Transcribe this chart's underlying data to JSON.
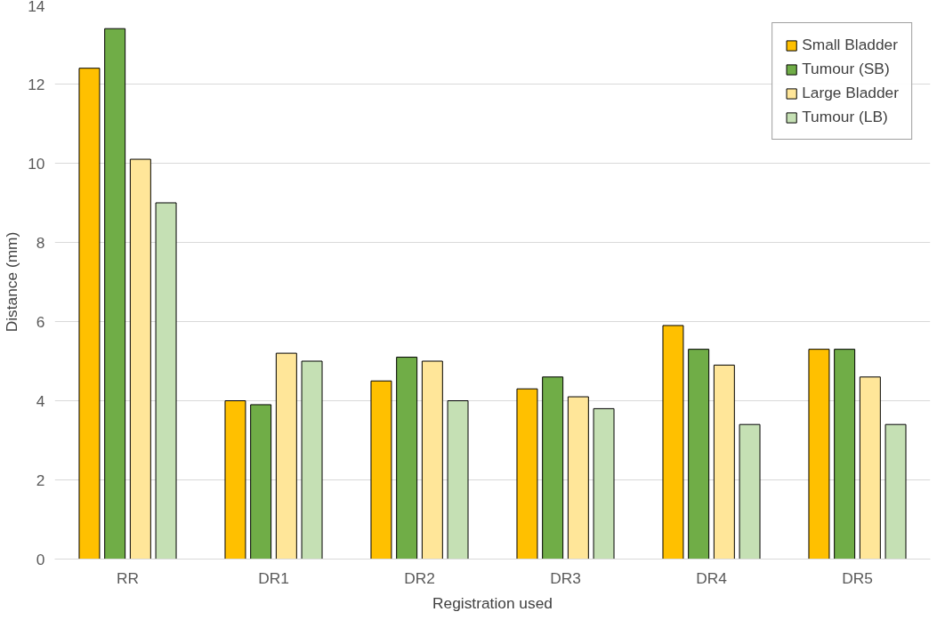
{
  "chart_data": {
    "type": "bar",
    "xlabel": "Registration used",
    "ylabel": "Distance (mm)",
    "categories": [
      "RR",
      "DR1",
      "DR2",
      "DR3",
      "DR4",
      "DR5"
    ],
    "series": [
      {
        "name": "Small Bladder",
        "color": "#ffc000",
        "values": [
          12.4,
          4.0,
          4.5,
          4.3,
          5.9,
          5.3
        ]
      },
      {
        "name": "Tumour (SB)",
        "color": "#70ad47",
        "values": [
          13.4,
          3.9,
          5.1,
          4.6,
          5.3,
          5.3
        ]
      },
      {
        "name": "Large Bladder",
        "color": "#ffe699",
        "values": [
          10.1,
          5.2,
          5.0,
          4.1,
          4.9,
          4.6
        ]
      },
      {
        "name": "Tumour (LB)",
        "color": "#c5e0b4",
        "values": [
          9.0,
          5.0,
          4.0,
          3.8,
          3.4,
          3.4
        ]
      }
    ],
    "ylim": [
      0,
      14
    ],
    "yticks": [
      0,
      2,
      4,
      6,
      8,
      10,
      12,
      14
    ],
    "grid": "y",
    "legend": "top right"
  }
}
